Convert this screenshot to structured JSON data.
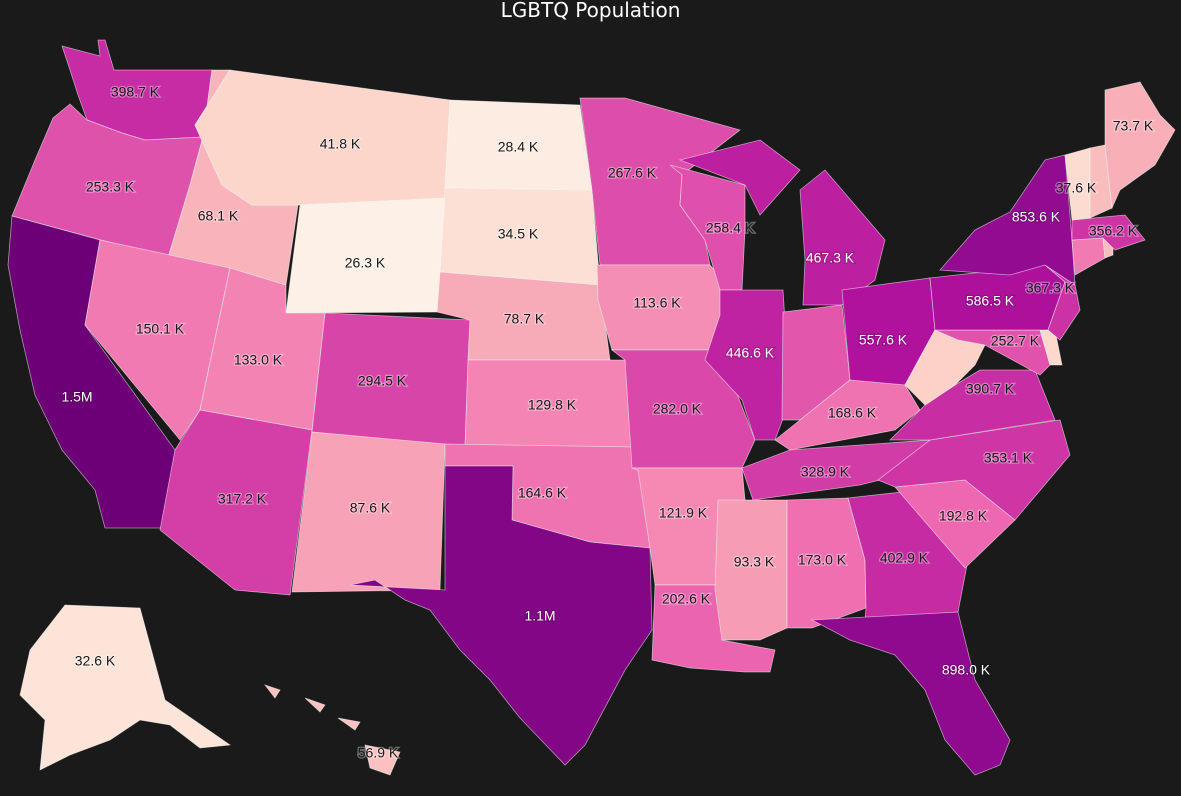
{
  "title": "LGBTQ Population",
  "color_scale": {
    "min_color": "#fdf0e6",
    "max_color": "#6e0077",
    "stops": [
      "#fdf0e6",
      "#fcd3c8",
      "#f8b0b8",
      "#f58ab3",
      "#ec66b0",
      "#d23ca6",
      "#b2129e",
      "#8e0a8f",
      "#6e0077"
    ]
  },
  "states": [
    {
      "code": "WA",
      "name": "Washington",
      "value": 398700,
      "label": "398.7 K"
    },
    {
      "code": "OR",
      "name": "Oregon",
      "value": 253300,
      "label": "253.3 K"
    },
    {
      "code": "CA",
      "name": "California",
      "value": 1500000,
      "label": "1.5M"
    },
    {
      "code": "ID",
      "name": "Idaho",
      "value": 68100,
      "label": "68.1 K"
    },
    {
      "code": "NV",
      "name": "Nevada",
      "value": 150100,
      "label": "150.1 K"
    },
    {
      "code": "MT",
      "name": "Montana",
      "value": 41800,
      "label": "41.8 K"
    },
    {
      "code": "WY",
      "name": "Wyoming",
      "value": 26300,
      "label": "26.3 K"
    },
    {
      "code": "UT",
      "name": "Utah",
      "value": 133000,
      "label": "133.0 K"
    },
    {
      "code": "AZ",
      "name": "Arizona",
      "value": 317200,
      "label": "317.2 K"
    },
    {
      "code": "CO",
      "name": "Colorado",
      "value": 294500,
      "label": "294.5 K"
    },
    {
      "code": "NM",
      "name": "New Mexico",
      "value": 87600,
      "label": "87.6 K"
    },
    {
      "code": "ND",
      "name": "North Dakota",
      "value": 28400,
      "label": "28.4 K"
    },
    {
      "code": "SD",
      "name": "South Dakota",
      "value": 34500,
      "label": "34.5 K"
    },
    {
      "code": "NE",
      "name": "Nebraska",
      "value": 78700,
      "label": "78.7 K"
    },
    {
      "code": "KS",
      "name": "Kansas",
      "value": 129800,
      "label": "129.8 K"
    },
    {
      "code": "OK",
      "name": "Oklahoma",
      "value": 164600,
      "label": "164.6 K"
    },
    {
      "code": "TX",
      "name": "Texas",
      "value": 1100000,
      "label": "1.1M"
    },
    {
      "code": "MN",
      "name": "Minnesota",
      "value": 267600,
      "label": "267.6 K"
    },
    {
      "code": "IA",
      "name": "Iowa",
      "value": 113600,
      "label": "113.6 K"
    },
    {
      "code": "MO",
      "name": "Missouri",
      "value": 282000,
      "label": "282.0 K"
    },
    {
      "code": "AR",
      "name": "Arkansas",
      "value": 121900,
      "label": "121.9 K"
    },
    {
      "code": "LA",
      "name": "Louisiana",
      "value": 202600,
      "label": "202.6 K"
    },
    {
      "code": "WI",
      "name": "Wisconsin",
      "value": 258400,
      "label": "258.4 K"
    },
    {
      "code": "IL",
      "name": "Illinois",
      "value": 446600,
      "label": "446.6 K"
    },
    {
      "code": "MI",
      "name": "Michigan",
      "value": 467300,
      "label": "467.3 K"
    },
    {
      "code": "IN",
      "name": "Indiana",
      "value": 240000,
      "label": ""
    },
    {
      "code": "OH",
      "name": "Ohio",
      "value": 557600,
      "label": "557.6 K"
    },
    {
      "code": "KY",
      "name": "Kentucky",
      "value": 168600,
      "label": "168.6 K"
    },
    {
      "code": "TN",
      "name": "Tennessee",
      "value": 328900,
      "label": "328.9 K"
    },
    {
      "code": "MS",
      "name": "Mississippi",
      "value": 93300,
      "label": "93.3 K"
    },
    {
      "code": "AL",
      "name": "Alabama",
      "value": 173000,
      "label": "173.0 K"
    },
    {
      "code": "GA",
      "name": "Georgia",
      "value": 402900,
      "label": "402.9 K"
    },
    {
      "code": "FL",
      "name": "Florida",
      "value": 898000,
      "label": "898.0 K"
    },
    {
      "code": "SC",
      "name": "South Carolina",
      "value": 192800,
      "label": "192.8 K"
    },
    {
      "code": "NC",
      "name": "North Carolina",
      "value": 353100,
      "label": "353.1 K"
    },
    {
      "code": "VA",
      "name": "Virginia",
      "value": 390700,
      "label": "390.7 K"
    },
    {
      "code": "WV",
      "name": "West Virginia",
      "value": 45000,
      "label": ""
    },
    {
      "code": "MD",
      "name": "Maryland",
      "value": 252700,
      "label": "252.7 K"
    },
    {
      "code": "DE",
      "name": "Delaware",
      "value": 40000,
      "label": ""
    },
    {
      "code": "PA",
      "name": "Pennsylvania",
      "value": 586500,
      "label": "586.5 K"
    },
    {
      "code": "NJ",
      "name": "New Jersey",
      "value": 367300,
      "label": "367.3 K"
    },
    {
      "code": "NY",
      "name": "New York",
      "value": 853600,
      "label": "853.6 K"
    },
    {
      "code": "CT",
      "name": "Connecticut",
      "value": 150000,
      "label": ""
    },
    {
      "code": "RI",
      "name": "Rhode Island",
      "value": 60000,
      "label": ""
    },
    {
      "code": "MA",
      "name": "Massachusetts",
      "value": 356200,
      "label": "356.2 K"
    },
    {
      "code": "VT",
      "name": "Vermont",
      "value": 37600,
      "label": "37.6 K"
    },
    {
      "code": "NH",
      "name": "New Hampshire",
      "value": 60000,
      "label": ""
    },
    {
      "code": "ME",
      "name": "Maine",
      "value": 73700,
      "label": "73.7 K"
    },
    {
      "code": "AK",
      "name": "Alaska",
      "value": 32600,
      "label": "32.6 K"
    },
    {
      "code": "HI",
      "name": "Hawaii",
      "value": 56900,
      "label": "56.9 K"
    }
  ]
}
